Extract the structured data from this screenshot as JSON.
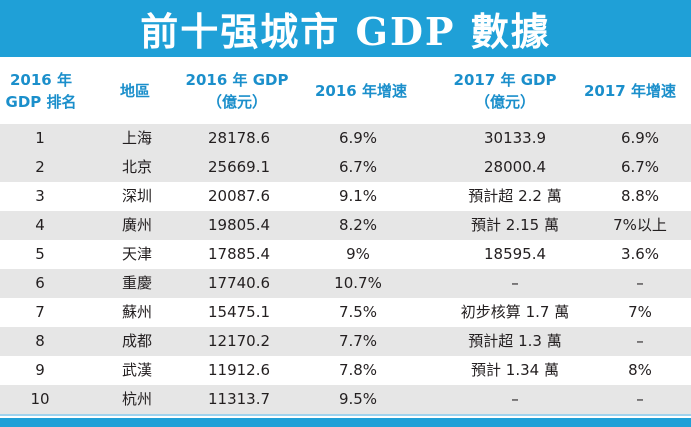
{
  "title": "前十强城市 GDP 數據",
  "columns": [
    {
      "line1": "2016 年",
      "line2": "GDP 排名"
    },
    {
      "line1": "地區",
      "line2": ""
    },
    {
      "line1": "2016 年 GDP",
      "line2": "（億元）"
    },
    {
      "line1": "2016 年增速",
      "line2": ""
    },
    {
      "line1": "2017 年 GDP",
      "line2": "（億元）"
    },
    {
      "line1": "2017 年增速",
      "line2": ""
    }
  ],
  "rows": [
    {
      "rank": "1",
      "city": "上海",
      "gdp2016": "28178.6",
      "growth2016": "6.9%",
      "gdp2017": "30133.9",
      "growth2017": "6.9%"
    },
    {
      "rank": "2",
      "city": "北京",
      "gdp2016": "25669.1",
      "growth2016": "6.7%",
      "gdp2017": "28000.4",
      "growth2017": "6.7%"
    },
    {
      "rank": "3",
      "city": "深圳",
      "gdp2016": "20087.6",
      "growth2016": "9.1%",
      "gdp2017": "預計超 2.2 萬",
      "growth2017": "8.8%"
    },
    {
      "rank": "4",
      "city": "廣州",
      "gdp2016": "19805.4",
      "growth2016": "8.2%",
      "gdp2017": "預計 2.15 萬",
      "growth2017": "7%以上"
    },
    {
      "rank": "5",
      "city": "天津",
      "gdp2016": "17885.4",
      "growth2016": "9%",
      "gdp2017": "18595.4",
      "growth2017": "3.6%"
    },
    {
      "rank": "6",
      "city": "重慶",
      "gdp2016": "17740.6",
      "growth2016": "10.7%",
      "gdp2017": "–",
      "growth2017": "–"
    },
    {
      "rank": "7",
      "city": "蘇州",
      "gdp2016": "15475.1",
      "growth2016": "7.5%",
      "gdp2017": "初步核算 1.7 萬",
      "growth2017": "7%"
    },
    {
      "rank": "8",
      "city": "成都",
      "gdp2016": "12170.2",
      "growth2016": "7.7%",
      "gdp2017": "預計超 1.3 萬",
      "growth2017": "–"
    },
    {
      "rank": "9",
      "city": "武漢",
      "gdp2016": "11912.6",
      "growth2016": "7.8%",
      "gdp2017": "預計 1.34 萬",
      "growth2017": "8%"
    },
    {
      "rank": "10",
      "city": "杭州",
      "gdp2016": "11313.7",
      "growth2016": "9.5%",
      "gdp2017": "–",
      "growth2017": "–"
    }
  ],
  "colors": {
    "title_bg": "#1fa0d7",
    "header_text": "#1b8fcb",
    "stripe": "#e6e6e6"
  }
}
